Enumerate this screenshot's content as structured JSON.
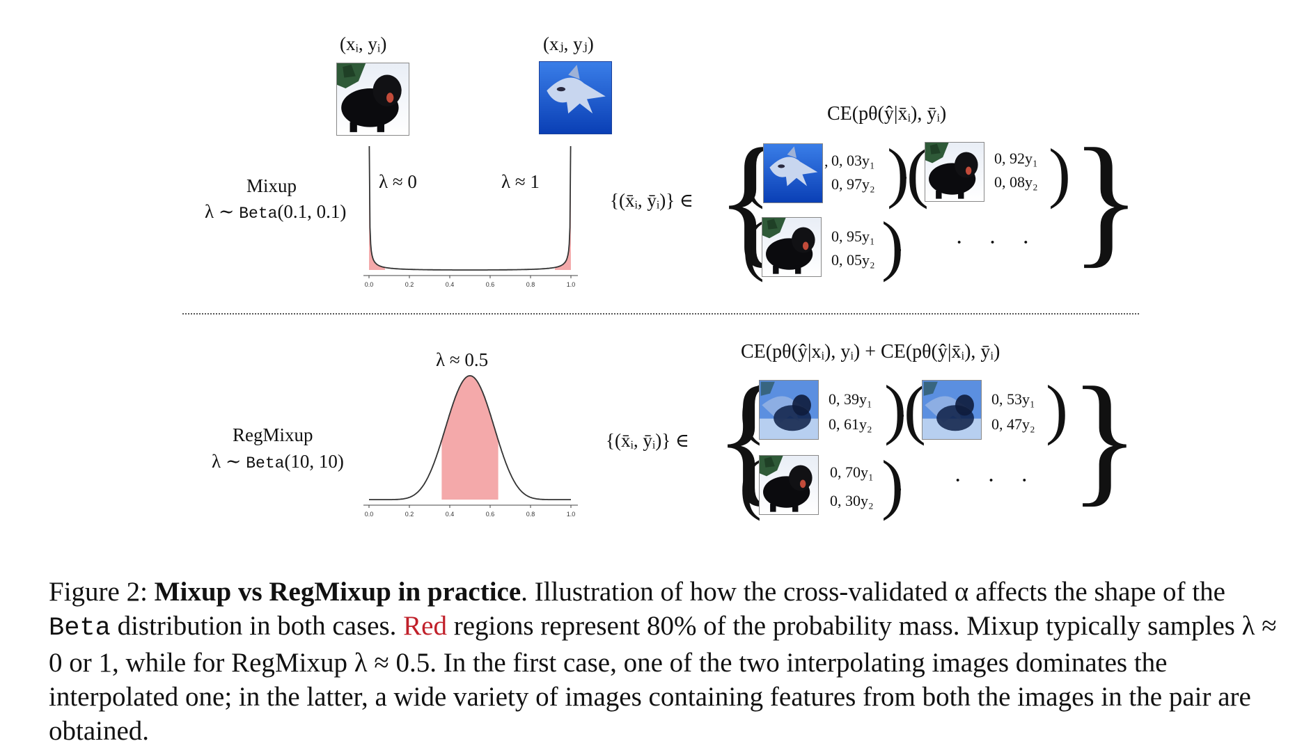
{
  "top": {
    "pair_left_label": "(xᵢ, yᵢ)",
    "pair_right_label": "(xⱼ, yⱼ)",
    "method_name": "Mixup",
    "dist_prefix": "λ ∼ ",
    "dist_name": "Beta",
    "dist_params": "(0.1, 0.1)",
    "lambda_left": "λ ≈ 0",
    "lambda_right": "λ ≈ 1",
    "set_label": "{(x̄ᵢ, ȳᵢ)} ∈",
    "ce_label": "CE(pθ(ŷ|x̄ᵢ), ȳᵢ)",
    "items": [
      {
        "top": "0, 03y₁",
        "bottom": "0, 97y₂",
        "image": "shark-image"
      },
      {
        "top": "0, 92y₁",
        "bottom": "0, 08y₂",
        "image": "dog-image"
      },
      {
        "top": "0, 95y₁",
        "bottom": "0, 05y₂",
        "image": "dog-image"
      }
    ],
    "ellipsis": "· · ·"
  },
  "bottom": {
    "method_name": "RegMixup",
    "dist_prefix": "λ ∼ ",
    "dist_name": "Beta",
    "dist_params": "(10, 10)",
    "lambda_mid": "λ ≈ 0.5",
    "set_label": "{(x̄ᵢ, ȳᵢ)} ∈",
    "ce_label": "CE(pθ(ŷ|xᵢ), yᵢ) + CE(pθ(ŷ|x̄ᵢ), ȳᵢ)",
    "items": [
      {
        "top": "0, 39y₁",
        "bottom": "0, 61y₂",
        "image": "mixed-image"
      },
      {
        "top": "0, 53y₁",
        "bottom": "0, 47y₂",
        "image": "mixed-image"
      },
      {
        "top": "0, 70y₁",
        "bottom": "0, 30y₂",
        "image": "dog-image"
      }
    ],
    "ellipsis": "· · ·"
  },
  "chart_data": [
    {
      "type": "area",
      "distribution": "Beta(0.1, 0.1)",
      "alpha": 0.1,
      "xlim": [
        0.0,
        1.0
      ],
      "x_ticks": [
        "0.0",
        "0.2",
        "0.4",
        "0.6",
        "0.8",
        "1.0"
      ],
      "shaded_regions": [
        [
          0.0,
          0.08
        ],
        [
          0.92,
          1.0
        ]
      ],
      "shade_color": "#f4a9aa"
    },
    {
      "type": "area",
      "distribution": "Beta(10, 10)",
      "alpha": 10,
      "xlim": [
        0.0,
        1.0
      ],
      "x_ticks": [
        "0.0",
        "0.2",
        "0.4",
        "0.6",
        "0.8",
        "1.0"
      ],
      "shaded_regions": [
        [
          0.36,
          0.64
        ]
      ],
      "shade_color": "#f4a9aa"
    }
  ],
  "caption": {
    "fig_label": "Figure 2: ",
    "bold_title": "Mixup vs RegMixup in practice",
    "after_title": ".  Illustration of how the cross-validated α affects the shape of the ",
    "beta_word": "Beta",
    "after_beta": " distribution in both cases. ",
    "red_word": "Red",
    "rest": " regions represent 80% of the probability mass. Mixup typically samples λ ≈ 0 or 1, while for RegMixup λ ≈ 0.5. In the first case, one of the two interpolating images dominates the interpolated one; in the latter, a wide variety of images containing features from both the images in the pair are obtained."
  },
  "colors": {
    "shade": "#f4a9aa",
    "curve": "#333333",
    "red_text": "#c0202a"
  }
}
